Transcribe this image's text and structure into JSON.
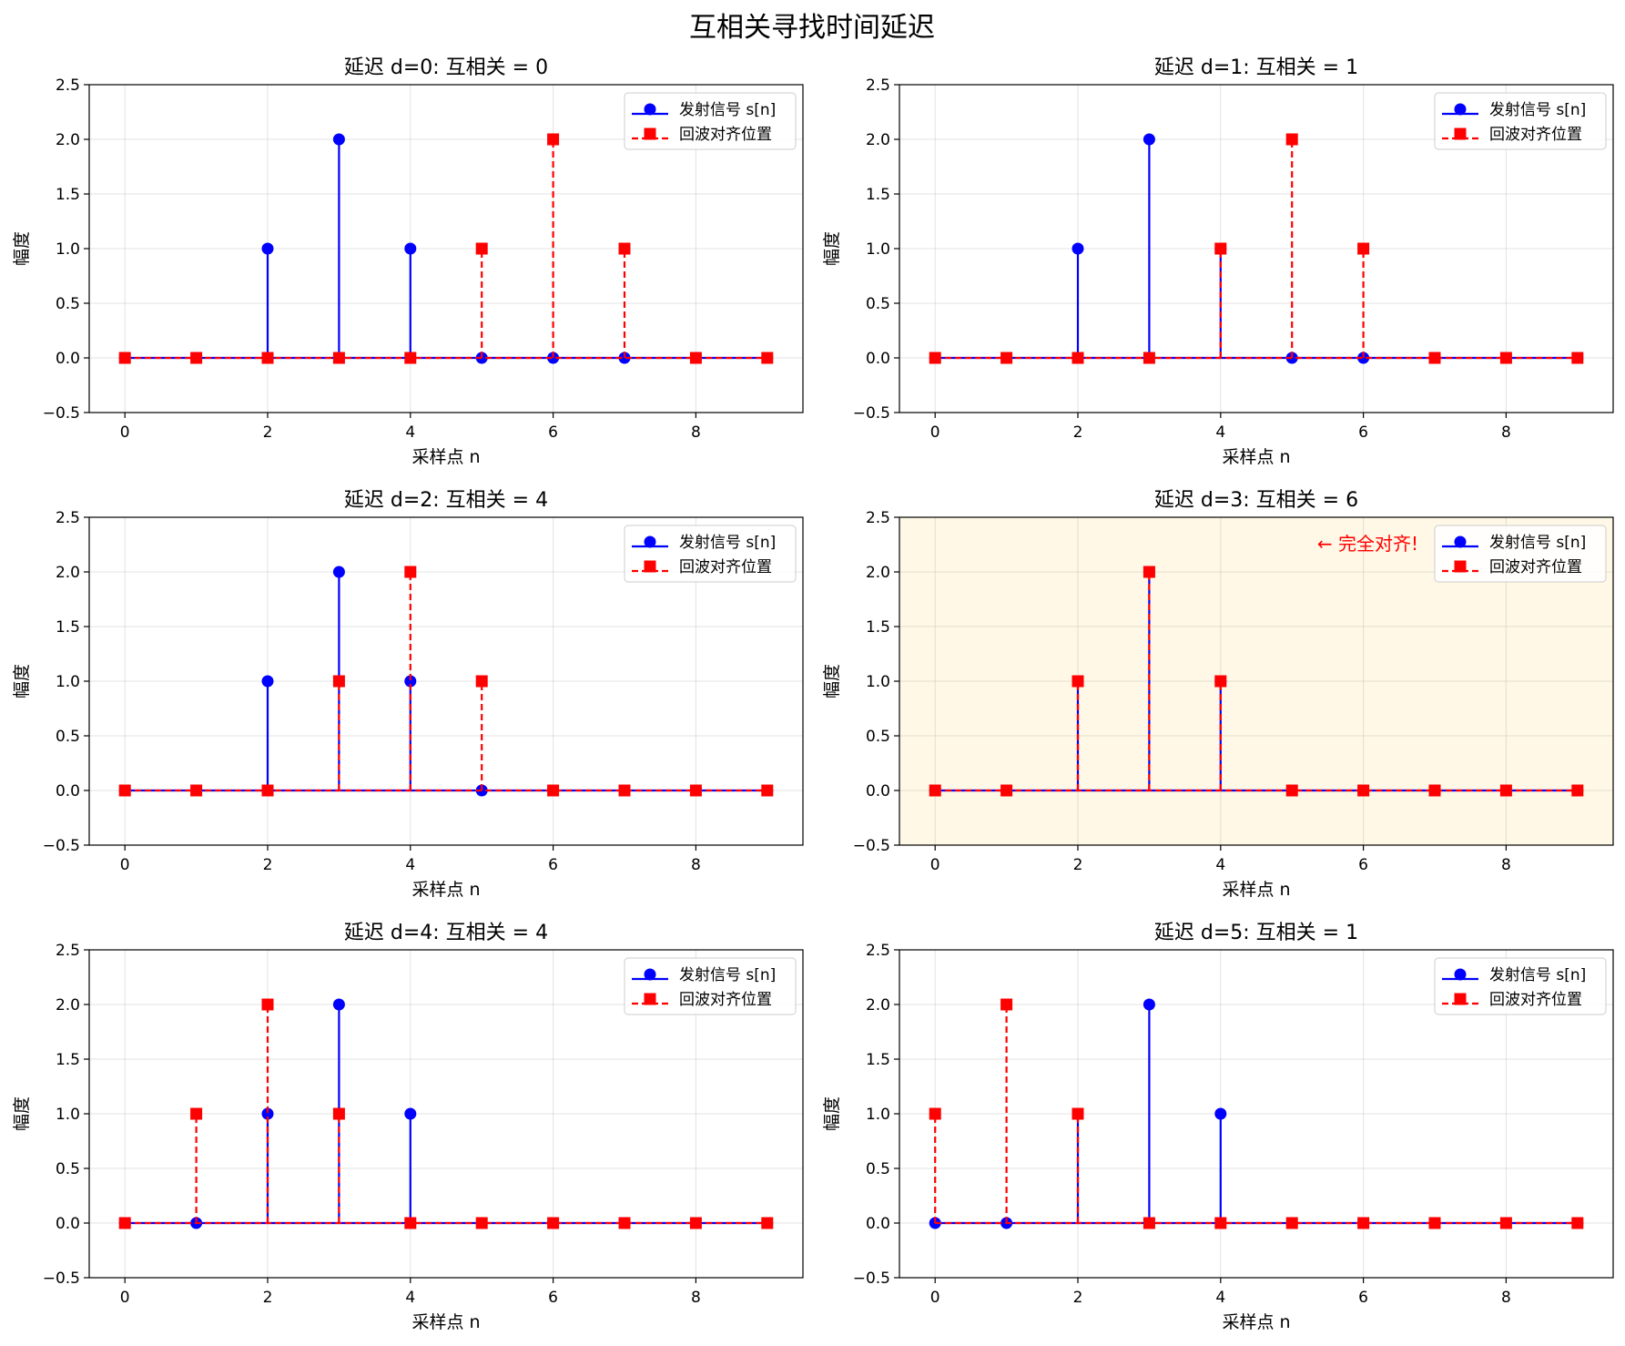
{
  "figure": {
    "title": "互相关寻找时间延迟"
  },
  "chart_data": [
    {
      "type": "stem",
      "title": "延迟 d=0: 互相关 = 0",
      "xlabel": "采样点 n",
      "ylabel": "幅度",
      "xlim": [
        -0.5,
        9.5
      ],
      "ylim": [
        -0.5,
        2.5
      ],
      "xticks": [
        "0",
        "2",
        "4",
        "6",
        "8"
      ],
      "yticks": [
        "−0.5",
        "0.0",
        "0.5",
        "1.0",
        "1.5",
        "2.0",
        "2.5"
      ],
      "grid": true,
      "legend": "top-right",
      "highlight": false,
      "annotation": "",
      "x": [
        0,
        1,
        2,
        3,
        4,
        5,
        6,
        7,
        8,
        9
      ],
      "series": [
        {
          "name": "发射信号 s[n]",
          "color": "#0000ff",
          "marker": "circle",
          "linestyle": "solid",
          "values": [
            0,
            0,
            1,
            2,
            1,
            0,
            0,
            0,
            0,
            0
          ]
        },
        {
          "name": "回波对齐位置",
          "color": "#ff0000",
          "marker": "square",
          "linestyle": "dashed",
          "values": [
            0,
            0,
            0,
            0,
            0,
            1,
            2,
            1,
            0,
            0
          ]
        }
      ]
    },
    {
      "type": "stem",
      "title": "延迟 d=1: 互相关 = 1",
      "xlabel": "采样点 n",
      "ylabel": "幅度",
      "xlim": [
        -0.5,
        9.5
      ],
      "ylim": [
        -0.5,
        2.5
      ],
      "xticks": [
        "0",
        "2",
        "4",
        "6",
        "8"
      ],
      "yticks": [
        "−0.5",
        "0.0",
        "0.5",
        "1.0",
        "1.5",
        "2.0",
        "2.5"
      ],
      "grid": true,
      "legend": "top-right",
      "highlight": false,
      "annotation": "",
      "x": [
        0,
        1,
        2,
        3,
        4,
        5,
        6,
        7,
        8,
        9
      ],
      "series": [
        {
          "name": "发射信号 s[n]",
          "color": "#0000ff",
          "marker": "circle",
          "linestyle": "solid",
          "values": [
            0,
            0,
            1,
            2,
            1,
            0,
            0,
            0,
            0,
            0
          ]
        },
        {
          "name": "回波对齐位置",
          "color": "#ff0000",
          "marker": "square",
          "linestyle": "dashed",
          "values": [
            0,
            0,
            0,
            0,
            1,
            2,
            1,
            0,
            0,
            0
          ]
        }
      ]
    },
    {
      "type": "stem",
      "title": "延迟 d=2: 互相关 = 4",
      "xlabel": "采样点 n",
      "ylabel": "幅度",
      "xlim": [
        -0.5,
        9.5
      ],
      "ylim": [
        -0.5,
        2.5
      ],
      "xticks": [
        "0",
        "2",
        "4",
        "6",
        "8"
      ],
      "yticks": [
        "−0.5",
        "0.0",
        "0.5",
        "1.0",
        "1.5",
        "2.0",
        "2.5"
      ],
      "grid": true,
      "legend": "top-right",
      "highlight": false,
      "annotation": "",
      "x": [
        0,
        1,
        2,
        3,
        4,
        5,
        6,
        7,
        8,
        9
      ],
      "series": [
        {
          "name": "发射信号 s[n]",
          "color": "#0000ff",
          "marker": "circle",
          "linestyle": "solid",
          "values": [
            0,
            0,
            1,
            2,
            1,
            0,
            0,
            0,
            0,
            0
          ]
        },
        {
          "name": "回波对齐位置",
          "color": "#ff0000",
          "marker": "square",
          "linestyle": "dashed",
          "values": [
            0,
            0,
            0,
            1,
            2,
            1,
            0,
            0,
            0,
            0
          ]
        }
      ]
    },
    {
      "type": "stem",
      "title": "延迟 d=3: 互相关 = 6",
      "xlabel": "采样点 n",
      "ylabel": "幅度",
      "xlim": [
        -0.5,
        9.5
      ],
      "ylim": [
        -0.5,
        2.5
      ],
      "xticks": [
        "0",
        "2",
        "4",
        "6",
        "8"
      ],
      "yticks": [
        "−0.5",
        "0.0",
        "0.5",
        "1.0",
        "1.5",
        "2.0",
        "2.5"
      ],
      "grid": true,
      "legend": "top-right",
      "highlight": true,
      "highlight_color": "#fff8e6",
      "annotation": "← 完全对齐!",
      "annotation_color": "#ff0000",
      "x": [
        0,
        1,
        2,
        3,
        4,
        5,
        6,
        7,
        8,
        9
      ],
      "series": [
        {
          "name": "发射信号 s[n]",
          "color": "#0000ff",
          "marker": "circle",
          "linestyle": "solid",
          "values": [
            0,
            0,
            1,
            2,
            1,
            0,
            0,
            0,
            0,
            0
          ]
        },
        {
          "name": "回波对齐位置",
          "color": "#ff0000",
          "marker": "square",
          "linestyle": "dashed",
          "values": [
            0,
            0,
            1,
            2,
            1,
            0,
            0,
            0,
            0,
            0
          ]
        }
      ]
    },
    {
      "type": "stem",
      "title": "延迟 d=4: 互相关 = 4",
      "xlabel": "采样点 n",
      "ylabel": "幅度",
      "xlim": [
        -0.5,
        9.5
      ],
      "ylim": [
        -0.5,
        2.5
      ],
      "xticks": [
        "0",
        "2",
        "4",
        "6",
        "8"
      ],
      "yticks": [
        "−0.5",
        "0.0",
        "0.5",
        "1.0",
        "1.5",
        "2.0",
        "2.5"
      ],
      "grid": true,
      "legend": "top-right",
      "highlight": false,
      "annotation": "",
      "x": [
        0,
        1,
        2,
        3,
        4,
        5,
        6,
        7,
        8,
        9
      ],
      "series": [
        {
          "name": "发射信号 s[n]",
          "color": "#0000ff",
          "marker": "circle",
          "linestyle": "solid",
          "values": [
            0,
            0,
            1,
            2,
            1,
            0,
            0,
            0,
            0,
            0
          ]
        },
        {
          "name": "回波对齐位置",
          "color": "#ff0000",
          "marker": "square",
          "linestyle": "dashed",
          "values": [
            0,
            1,
            2,
            1,
            0,
            0,
            0,
            0,
            0,
            0
          ]
        }
      ]
    },
    {
      "type": "stem",
      "title": "延迟 d=5: 互相关 = 1",
      "xlabel": "采样点 n",
      "ylabel": "幅度",
      "xlim": [
        -0.5,
        9.5
      ],
      "ylim": [
        -0.5,
        2.5
      ],
      "xticks": [
        "0",
        "2",
        "4",
        "6",
        "8"
      ],
      "yticks": [
        "−0.5",
        "0.0",
        "0.5",
        "1.0",
        "1.5",
        "2.0",
        "2.5"
      ],
      "grid": true,
      "legend": "top-right",
      "highlight": false,
      "annotation": "",
      "x": [
        0,
        1,
        2,
        3,
        4,
        5,
        6,
        7,
        8,
        9
      ],
      "series": [
        {
          "name": "发射信号 s[n]",
          "color": "#0000ff",
          "marker": "circle",
          "linestyle": "solid",
          "values": [
            0,
            0,
            1,
            2,
            1,
            0,
            0,
            0,
            0,
            0
          ]
        },
        {
          "name": "回波对齐位置",
          "color": "#ff0000",
          "marker": "square",
          "linestyle": "dashed",
          "values": [
            1,
            2,
            1,
            0,
            0,
            0,
            0,
            0,
            0,
            0
          ]
        }
      ]
    }
  ]
}
